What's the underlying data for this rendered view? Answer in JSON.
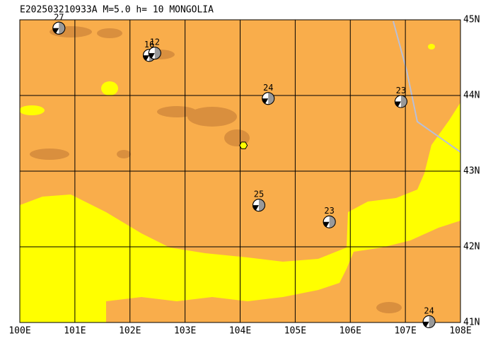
{
  "title": "E202503210933A M=5.0 h= 10 MONGOLIA",
  "map": {
    "lon_range": [
      100,
      108
    ],
    "lat_range": [
      41,
      45
    ],
    "lon_ticks": [
      {
        "value": 100,
        "label": "100E"
      },
      {
        "value": 101,
        "label": "101E"
      },
      {
        "value": 102,
        "label": "102E"
      },
      {
        "value": 103,
        "label": "103E"
      },
      {
        "value": 104,
        "label": "104E"
      },
      {
        "value": 105,
        "label": "105E"
      },
      {
        "value": 106,
        "label": "106E"
      },
      {
        "value": 107,
        "label": "107E"
      },
      {
        "value": 108,
        "label": "108E"
      }
    ],
    "lat_ticks": [
      {
        "value": 41,
        "label": "41N"
      },
      {
        "value": 42,
        "label": "42N"
      },
      {
        "value": 43,
        "label": "43N"
      },
      {
        "value": 44,
        "label": "44N"
      },
      {
        "value": 45,
        "label": "45N"
      }
    ],
    "epicenter": {
      "lon": 104.06,
      "lat": 43.34
    },
    "events": [
      {
        "label": "27",
        "lon": 100.71,
        "lat": 44.89
      },
      {
        "label": "16",
        "lon": 102.35,
        "lat": 44.53
      },
      {
        "label": "12",
        "lon": 102.45,
        "lat": 44.56
      },
      {
        "label": "24",
        "lon": 104.51,
        "lat": 43.96
      },
      {
        "label": "23",
        "lon": 106.92,
        "lat": 43.92
      },
      {
        "label": "25",
        "lon": 104.34,
        "lat": 42.55
      },
      {
        "label": "23",
        "lon": 105.62,
        "lat": 42.33
      },
      {
        "label": "24",
        "lon": 107.43,
        "lat": 41.01
      }
    ]
  }
}
